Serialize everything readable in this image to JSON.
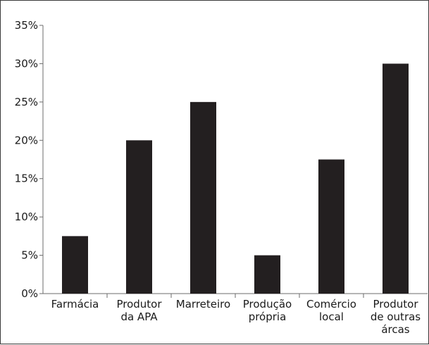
{
  "chart_data": {
    "type": "bar",
    "categories": [
      "Farmácia",
      "Produtor da APA",
      "Marreteiro",
      "Produção própria",
      "Comércio local",
      "Produtor de outras árcas"
    ],
    "category_lines": [
      [
        "Farmácia"
      ],
      [
        "Produtor",
        "da APA"
      ],
      [
        "Marreteiro"
      ],
      [
        "Produção",
        "própria"
      ],
      [
        "Comércio",
        "local"
      ],
      [
        "Produtor",
        "de outras",
        "árcas"
      ]
    ],
    "values": [
      7.5,
      20,
      25,
      5,
      17.5,
      30
    ],
    "ylim": [
      0,
      35
    ],
    "yticks": [
      0,
      5,
      10,
      15,
      20,
      25,
      30,
      35
    ],
    "ytick_labels": [
      "0%",
      "5%",
      "10%",
      "15%",
      "20%",
      "25%",
      "30%",
      "35%"
    ],
    "title": "",
    "xlabel": "",
    "ylabel": "",
    "grid": false,
    "legend": "none",
    "bar_color": "#231f20",
    "axis_color": "#6b6b6b"
  }
}
